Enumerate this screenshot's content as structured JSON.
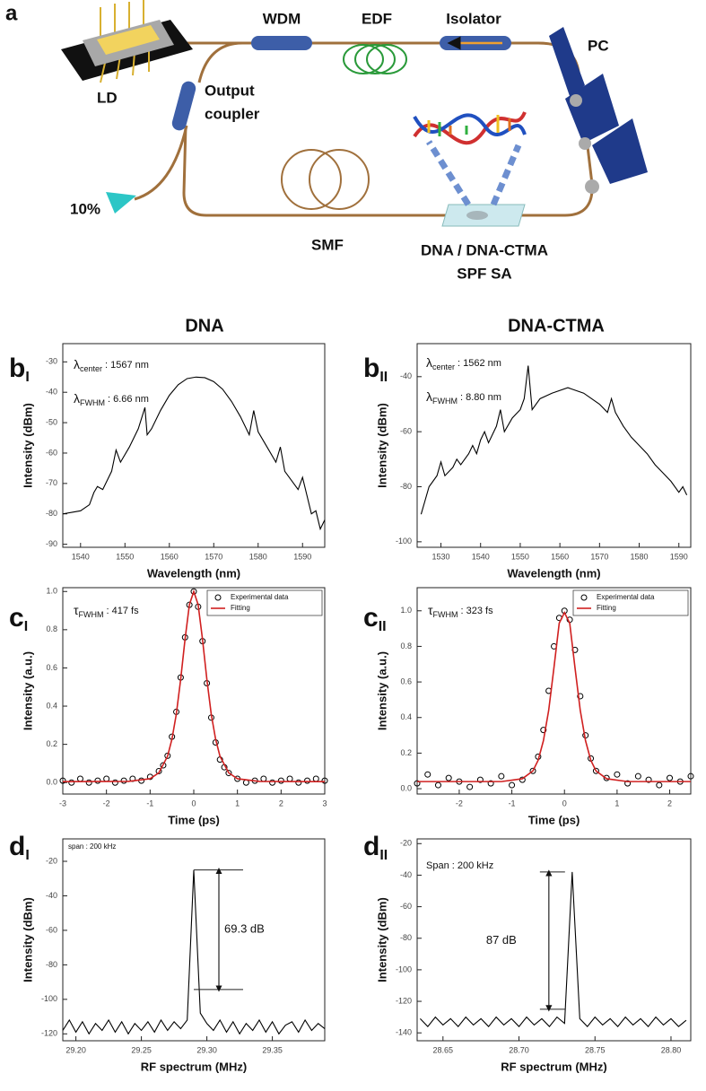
{
  "diagram": {
    "panel_label": "a",
    "labels": {
      "ld": "LD",
      "wdm": "WDM",
      "edf": "EDF",
      "isolator": "Isolator",
      "pc": "PC",
      "coupler_1": "Output",
      "coupler_2": "coupler",
      "output": "10%",
      "smf": "SMF",
      "sa_1": "DNA / DNA-CTMA",
      "sa_2": "SPF SA"
    }
  },
  "headings": [
    "DNA",
    "DNA-CTMA"
  ],
  "chart_data": [
    {
      "type": "line",
      "panel_label": {
        "letter": "b",
        "subscript": "I"
      },
      "xlabel": "Wavelength (nm)",
      "ylabel": "Intensity (dBm)",
      "xlim": [
        1536,
        1595
      ],
      "ylim": [
        -91,
        -24
      ],
      "xticks": [
        1540,
        1550,
        1560,
        1570,
        1580,
        1590
      ],
      "yticks": [
        -30,
        -40,
        -50,
        -60,
        -70,
        -80,
        -90
      ],
      "annotations": [
        {
          "symbol": "λ",
          "subscript": "center",
          "text": ": 1567 nm"
        },
        {
          "symbol": "λ",
          "subscript": "FWHM",
          "text": ": 6.66 nm"
        }
      ],
      "series": [
        {
          "color": "#000000",
          "x": [
            1536,
            1538,
            1540,
            1542,
            1543,
            1543.8,
            1545,
            1547,
            1548,
            1549,
            1551,
            1553,
            1554.5,
            1555,
            1556,
            1558,
            1560,
            1562,
            1564,
            1566,
            1568,
            1570,
            1572,
            1574,
            1576,
            1578,
            1579,
            1580,
            1582,
            1584,
            1585,
            1586,
            1588,
            1589,
            1590,
            1591,
            1592,
            1593,
            1594,
            1595
          ],
          "values": [
            -80,
            -79.5,
            -79,
            -77,
            -73,
            -71,
            -72,
            -66,
            -59,
            -63,
            -58,
            -52,
            -45,
            -54,
            -52,
            -46,
            -41,
            -37.5,
            -35.5,
            -35,
            -35.2,
            -36.5,
            -39,
            -43,
            -48,
            -54,
            -46,
            -53,
            -58,
            -63,
            -58,
            -66,
            -70,
            -72,
            -68,
            -74,
            -80,
            -79,
            -85,
            -82
          ]
        }
      ]
    },
    {
      "type": "line",
      "panel_label": {
        "letter": "b",
        "subscript": "II"
      },
      "xlabel": "Wavelength (nm)",
      "ylabel": "Intensity (dBm)",
      "xlim": [
        1524,
        1593
      ],
      "ylim": [
        -102,
        -28
      ],
      "xticks": [
        1530,
        1540,
        1550,
        1560,
        1570,
        1580,
        1590
      ],
      "yticks": [
        -40,
        -60,
        -80,
        -100
      ],
      "annotations": [
        {
          "symbol": "λ",
          "subscript": "center",
          "text": ": 1562 nm"
        },
        {
          "symbol": "λ",
          "subscript": "FWHM",
          "text": ": 8.80 nm"
        }
      ],
      "series": [
        {
          "color": "#000000",
          "x": [
            1525,
            1526,
            1527,
            1529,
            1530,
            1531,
            1533,
            1534,
            1535,
            1537,
            1538,
            1539,
            1540,
            1541,
            1542,
            1544,
            1545,
            1546,
            1548,
            1550,
            1551,
            1552,
            1553,
            1555,
            1558,
            1562,
            1566,
            1570,
            1572,
            1573,
            1574,
            1576,
            1578,
            1580,
            1582,
            1584,
            1586,
            1588,
            1590,
            1591,
            1592
          ],
          "values": [
            -90,
            -85,
            -80,
            -76,
            -71,
            -76,
            -73,
            -70,
            -72,
            -68,
            -65,
            -68,
            -63,
            -60,
            -64,
            -58,
            -52,
            -60,
            -55,
            -52,
            -48,
            -36,
            -52,
            -48,
            -46,
            -44,
            -46,
            -50,
            -53,
            -48,
            -53,
            -58,
            -62,
            -65,
            -68,
            -72,
            -75,
            -78,
            -82,
            -80,
            -83
          ]
        }
      ]
    },
    {
      "type": "scatter",
      "panel_label": {
        "letter": "c",
        "subscript": "I"
      },
      "xlabel": "Time (ps)",
      "ylabel": "Intensity (a.u.)",
      "xlim": [
        -3,
        3
      ],
      "ylim": [
        -0.06,
        1.02
      ],
      "xticks": [
        -3,
        -2,
        -1,
        0,
        1,
        2,
        3
      ],
      "yticks": [
        {
          "value": 0,
          "label": "0.0"
        },
        {
          "value": 0.2,
          "label": "0.2"
        },
        {
          "value": 0.4,
          "label": "0.4"
        },
        {
          "value": 0.6,
          "label": "0.6"
        },
        {
          "value": 0.8,
          "label": "0.8"
        },
        {
          "value": 1,
          "label": "1.0"
        }
      ],
      "annotations": [
        {
          "symbol": "τ",
          "subscript": "FWHM",
          "text": ": 417 fs"
        }
      ],
      "series": [
        {
          "name": "Experimental data",
          "color": "#000000",
          "mode": "markers",
          "x": [
            -3,
            -2.8,
            -2.6,
            -2.4,
            -2.2,
            -2,
            -1.8,
            -1.6,
            -1.4,
            -1.2,
            -1,
            -0.8,
            -0.7,
            -0.6,
            -0.5,
            -0.4,
            -0.3,
            -0.2,
            -0.1,
            0,
            0.1,
            0.2,
            0.3,
            0.4,
            0.5,
            0.6,
            0.7,
            0.8,
            1,
            1.2,
            1.4,
            1.6,
            1.8,
            2,
            2.2,
            2.4,
            2.6,
            2.8,
            3
          ],
          "values": [
            0.01,
            0,
            0.02,
            0,
            0.01,
            0.02,
            0,
            0.01,
            0.02,
            0.01,
            0.03,
            0.06,
            0.09,
            0.14,
            0.24,
            0.37,
            0.55,
            0.76,
            0.93,
            1,
            0.92,
            0.74,
            0.52,
            0.34,
            0.21,
            0.12,
            0.08,
            0.05,
            0.02,
            0,
            0.01,
            0.02,
            0,
            0.01,
            0.02,
            0,
            0.01,
            0.02,
            0.01
          ]
        },
        {
          "name": "Fitting",
          "color": "#d02020",
          "mode": "line",
          "x": [
            -3,
            -1.5,
            -1,
            -0.8,
            -0.6,
            -0.5,
            -0.4,
            -0.3,
            -0.2,
            -0.1,
            0,
            0.1,
            0.2,
            0.3,
            0.4,
            0.5,
            0.6,
            0.8,
            1,
            1.5,
            3
          ],
          "values": [
            0.005,
            0.006,
            0.02,
            0.051,
            0.138,
            0.227,
            0.358,
            0.54,
            0.75,
            0.931,
            1,
            0.931,
            0.75,
            0.54,
            0.358,
            0.227,
            0.138,
            0.051,
            0.02,
            0.006,
            0.005
          ]
        }
      ]
    },
    {
      "type": "scatter",
      "panel_label": {
        "letter": "c",
        "subscript": "II"
      },
      "xlabel": "Time (ps)",
      "ylabel": "Intensity (a.u.)",
      "xlim": [
        -2.8,
        2.4
      ],
      "ylim": [
        -0.03,
        1.13
      ],
      "xticks": [
        -2,
        -1,
        0,
        1,
        2
      ],
      "yticks": [
        {
          "value": 0,
          "label": "0.0"
        },
        {
          "value": 0.2,
          "label": "0.2"
        },
        {
          "value": 0.4,
          "label": "0.4"
        },
        {
          "value": 0.6,
          "label": "0.6"
        },
        {
          "value": 0.8,
          "label": "0.8"
        },
        {
          "value": 1,
          "label": "1.0"
        }
      ],
      "annotations": [
        {
          "symbol": "τ",
          "subscript": "FWHM",
          "text": ": 323 fs"
        }
      ],
      "series": [
        {
          "name": "Experimental data",
          "color": "#000000",
          "mode": "markers",
          "x": [
            -2.8,
            -2.6,
            -2.4,
            -2.2,
            -2,
            -1.8,
            -1.6,
            -1.4,
            -1.2,
            -1,
            -0.8,
            -0.6,
            -0.5,
            -0.4,
            -0.3,
            -0.2,
            -0.1,
            0,
            0.1,
            0.2,
            0.3,
            0.4,
            0.5,
            0.6,
            0.8,
            1,
            1.2,
            1.4,
            1.6,
            1.8,
            2,
            2.2,
            2.4
          ],
          "values": [
            0.03,
            0.08,
            0.02,
            0.06,
            0.04,
            0.01,
            0.05,
            0.03,
            0.07,
            0.02,
            0.05,
            0.1,
            0.18,
            0.33,
            0.55,
            0.8,
            0.96,
            1,
            0.95,
            0.78,
            0.52,
            0.3,
            0.17,
            0.1,
            0.06,
            0.08,
            0.03,
            0.07,
            0.05,
            0.02,
            0.06,
            0.04,
            0.07
          ]
        },
        {
          "name": "Fitting",
          "color": "#d02020",
          "mode": "line",
          "x": [
            -2.8,
            -1.2,
            -0.8,
            -0.6,
            -0.5,
            -0.4,
            -0.3,
            -0.2,
            -0.1,
            0,
            0.1,
            0.2,
            0.3,
            0.4,
            0.5,
            0.6,
            0.8,
            1.2,
            2.4
          ],
          "values": [
            0.04,
            0.04,
            0.056,
            0.1,
            0.16,
            0.27,
            0.44,
            0.68,
            0.93,
            0.99,
            0.93,
            0.68,
            0.44,
            0.27,
            0.16,
            0.1,
            0.056,
            0.04,
            0.04
          ]
        }
      ]
    },
    {
      "type": "line",
      "panel_label": {
        "letter": "d",
        "subscript": "I"
      },
      "xlabel": "RF spectrum (MHz)",
      "ylabel": "Intensity (dBm)",
      "xlim": [
        29.19,
        29.39
      ],
      "ylim": [
        -124,
        -7
      ],
      "xticks": [
        {
          "value": 29.2,
          "label": "29.20"
        },
        29.25,
        {
          "value": 29.3,
          "label": "29.30"
        },
        29.35
      ],
      "yticks": [
        -20,
        -40,
        -60,
        -80,
        -100,
        -120
      ],
      "annotations": [
        {
          "text": "span : 200 kHz"
        }
      ],
      "snr": {
        "value": 69.3,
        "label": "69.3 dB"
      },
      "series": [
        {
          "color": "#000000",
          "x": [
            29.19,
            29.195,
            29.2,
            29.205,
            29.21,
            29.215,
            29.22,
            29.225,
            29.23,
            29.235,
            29.24,
            29.245,
            29.25,
            29.255,
            29.26,
            29.265,
            29.27,
            29.275,
            29.28,
            29.285,
            29.29,
            29.295,
            29.3,
            29.305,
            29.31,
            29.315,
            29.32,
            29.325,
            29.33,
            29.335,
            29.34,
            29.345,
            29.35,
            29.355,
            29.36,
            29.365,
            29.37,
            29.375,
            29.38,
            29.385,
            29.39
          ],
          "values": [
            -118,
            -112,
            -119,
            -113,
            -120,
            -114,
            -118,
            -112,
            -119,
            -113,
            -120,
            -114,
            -118,
            -113,
            -119,
            -112,
            -118,
            -113,
            -117,
            -112,
            -25,
            -108,
            -114,
            -118,
            -112,
            -119,
            -113,
            -120,
            -114,
            -118,
            -112,
            -119,
            -113,
            -120,
            -115,
            -113,
            -119,
            -112,
            -118,
            -114,
            -117
          ]
        }
      ]
    },
    {
      "type": "line",
      "panel_label": {
        "letter": "d",
        "subscript": "II"
      },
      "xlabel": "RF spectrum (MHz)",
      "ylabel": "Intensity (dBm)",
      "xlim": [
        28.633,
        28.813
      ],
      "ylim": [
        -145,
        -17
      ],
      "xticks": [
        28.65,
        {
          "value": 28.7,
          "label": "28.70"
        },
        28.75,
        {
          "value": 28.8,
          "label": "28.80"
        }
      ],
      "yticks": [
        -20,
        -40,
        -60,
        -80,
        -100,
        -120,
        -140
      ],
      "annotations": [
        {
          "text": "Span : 200 kHz"
        }
      ],
      "snr": {
        "value": 87,
        "label": "87 dB"
      },
      "series": [
        {
          "color": "#000000",
          "x": [
            28.635,
            28.64,
            28.645,
            28.65,
            28.655,
            28.66,
            28.665,
            28.67,
            28.675,
            28.68,
            28.685,
            28.69,
            28.695,
            28.7,
            28.705,
            28.71,
            28.715,
            28.72,
            28.725,
            28.73,
            28.735,
            28.74,
            28.745,
            28.75,
            28.755,
            28.76,
            28.765,
            28.77,
            28.775,
            28.78,
            28.785,
            28.79,
            28.795,
            28.8,
            28.805,
            28.81
          ],
          "values": [
            -131,
            -136,
            -130,
            -135,
            -131,
            -136,
            -130,
            -135,
            -131,
            -136,
            -130,
            -135,
            -131,
            -136,
            -130,
            -135,
            -131,
            -136,
            -130,
            -134,
            -38,
            -131,
            -136,
            -130,
            -135,
            -131,
            -136,
            -130,
            -135,
            -131,
            -136,
            -130,
            -135,
            -131,
            -136,
            -132
          ]
        }
      ]
    }
  ]
}
